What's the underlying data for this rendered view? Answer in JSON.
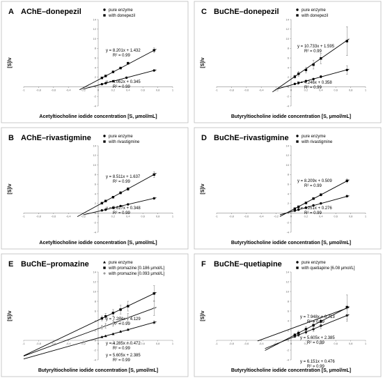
{
  "chart_data": [
    {
      "letter": "A",
      "title": "AChE–donepezil",
      "type": "scatter",
      "xlabel": "Acetyltiocholine iodide concentration [S, μmol/mL]",
      "ylabel": "[S]/v",
      "xlim": [
        -1,
        1
      ],
      "ylim": [
        -4,
        14
      ],
      "xticks": [
        "-1",
        "-0,8",
        "-0,6",
        "-0,4",
        "-0,2",
        "0",
        "0,2",
        "0,4",
        "0,6",
        "0,8",
        "1"
      ],
      "yticks": [
        "-4",
        "-2",
        "0",
        "2",
        "4",
        "6",
        "8",
        "10",
        "12",
        "14"
      ],
      "legend_loc": "top-right",
      "series": [
        {
          "name": "pure enzyme",
          "marker": "circle",
          "slope": 4.062,
          "intercept": 0.345,
          "x": [
            0.05,
            0.1,
            0.2,
            0.38,
            0.75
          ],
          "y": [
            0.55,
            0.75,
            1.16,
            1.89,
            3.4
          ],
          "err": [
            0.08,
            0.08,
            0.1,
            0.1,
            0.15
          ],
          "equation": "y = 4.062x + 0.345",
          "r2": "R² = 0.99",
          "fit_from": -0.2
        },
        {
          "name": "with donepezil",
          "marker": "square",
          "slope": 8.201,
          "intercept": 1.432,
          "x": [
            0.05,
            0.1,
            0.2,
            0.3,
            0.4,
            0.75
          ],
          "y": [
            1.85,
            2.25,
            3.1,
            3.9,
            4.9,
            7.6
          ],
          "err": [
            0.1,
            0.1,
            0.15,
            0.2,
            0.25,
            0.5
          ],
          "equation": "y = 8.201x + 1.432",
          "r2": "R² = 0.99",
          "fit_from": -0.25
        }
      ]
    },
    {
      "letter": "C",
      "title": "BuChE–donepezil",
      "type": "scatter",
      "xlabel": "Butyryltiocholine iodide concentration [S, μmol/mL]",
      "ylabel": "[S]/v",
      "xlim": [
        -1,
        1
      ],
      "ylim": [
        -4,
        14
      ],
      "xticks": [
        "-1",
        "-0,8",
        "-0,6",
        "-0,4",
        "-0,2",
        "0",
        "0,2",
        "0,4",
        "0,6",
        "0,8",
        "1"
      ],
      "yticks": [
        "-4",
        "-2",
        "0",
        "2",
        "4",
        "6",
        "8",
        "10",
        "12",
        "14"
      ],
      "legend_loc": "top-right",
      "series": [
        {
          "name": "pure enzyme",
          "marker": "circle",
          "slope": 4.246,
          "intercept": 0.358,
          "x": [
            0.05,
            0.1,
            0.2,
            0.3,
            0.4,
            0.75
          ],
          "y": [
            0.6,
            0.8,
            1.2,
            1.6,
            2.1,
            3.5
          ],
          "err": [
            0.1,
            0.1,
            0.15,
            0.2,
            0.25,
            0.9
          ],
          "equation": "y = 4.246x + 0.358",
          "r2": "R² = 0.99",
          "fit_from": -0.2
        },
        {
          "name": "with donepezil",
          "marker": "square",
          "slope": 10.733,
          "intercept": 1.595,
          "x": [
            0.05,
            0.1,
            0.2,
            0.3,
            0.4,
            0.75
          ],
          "y": [
            2.1,
            2.7,
            3.5,
            4.6,
            5.9,
            9.5
          ],
          "err": [
            0.3,
            0.5,
            0.6,
            0.9,
            1.1,
            3.0
          ],
          "equation": "y = 10.733x + 1.595",
          "r2": "R² = 0.99",
          "fit_from": -0.25
        }
      ]
    },
    {
      "letter": "B",
      "title": "AChE–rivastigmine",
      "type": "scatter",
      "xlabel": "Acetyltiocholine iodide concentration [S, μmol/mL]",
      "ylabel": "[S]/v",
      "xlim": [
        -1,
        1
      ],
      "ylim": [
        -4,
        14
      ],
      "xticks": [
        "-1",
        "-0,8",
        "-0,6",
        "-0,4",
        "-0,2",
        "0",
        "0,2",
        "0,4",
        "0,6",
        "0,8",
        "1"
      ],
      "yticks": [
        "-4",
        "-2",
        "0",
        "2",
        "4",
        "6",
        "8",
        "10",
        "12",
        "14"
      ],
      "legend_loc": "top-right",
      "series": [
        {
          "name": "pure enzyme",
          "marker": "circle",
          "slope": 3.617,
          "intercept": 0.348,
          "x": [
            0.05,
            0.1,
            0.2,
            0.3,
            0.4,
            0.75
          ],
          "y": [
            0.55,
            0.7,
            1.1,
            1.45,
            1.8,
            3.05
          ],
          "err": [
            0.08,
            0.08,
            0.1,
            0.1,
            0.1,
            0.2
          ],
          "equation": "y = 3.617x + 0.348",
          "r2": "R² = 0.99",
          "fit_from": -0.2
        },
        {
          "name": "with rivastigmine",
          "marker": "square",
          "slope": 8.511,
          "intercept": 1.637,
          "x": [
            0.05,
            0.1,
            0.2,
            0.3,
            0.4,
            0.75
          ],
          "y": [
            2.05,
            2.5,
            3.3,
            4.2,
            5.0,
            8.0
          ],
          "err": [
            0.1,
            0.15,
            0.2,
            0.25,
            0.3,
            0.6
          ],
          "equation": "y = 8.511x + 1.637",
          "r2": "R² = 0.99",
          "fit_from": -0.28
        }
      ]
    },
    {
      "letter": "D",
      "title": "BuChE–rivastigmine",
      "type": "scatter",
      "xlabel": "Butyryltiocholine iodide concentration [S, μmol/mL]",
      "ylabel": "[S]/v",
      "xlim": [
        -1,
        1
      ],
      "ylim": [
        -4,
        14
      ],
      "xticks": [
        "-1",
        "-0,8",
        "-0,6",
        "-0,4",
        "-0,2",
        "0",
        "0,2",
        "0,4",
        "0,6",
        "0,8",
        "1"
      ],
      "yticks": [
        "-4",
        "-2",
        "0",
        "2",
        "4",
        "6",
        "8",
        "10",
        "12",
        "14"
      ],
      "legend_loc": "top-right",
      "series": [
        {
          "name": "pure enzyme",
          "marker": "circle",
          "slope": 4.251,
          "intercept": 0.276,
          "x": [
            0.05,
            0.1,
            0.2,
            0.3,
            0.4,
            0.75
          ],
          "y": [
            0.5,
            0.7,
            1.1,
            1.6,
            2.0,
            3.5
          ],
          "err": [
            0.08,
            0.08,
            0.1,
            0.1,
            0.15,
            0.2
          ],
          "equation": "y = 4.251x + 0.276",
          "r2": "R² = 0.99",
          "fit_from": -0.15
        },
        {
          "name": "with rivastigmine",
          "marker": "square",
          "slope": 8.209,
          "intercept": 0.509,
          "x": [
            0.05,
            0.1,
            0.2,
            0.3,
            0.4,
            0.75
          ],
          "y": [
            0.9,
            1.3,
            2.1,
            3.0,
            3.8,
            6.7
          ],
          "err": [
            0.1,
            0.1,
            0.15,
            0.2,
            0.25,
            0.4
          ],
          "equation": "y = 8.209x + 0.509",
          "r2": "R² = 0.99",
          "fit_from": -0.15
        }
      ]
    },
    {
      "letter": "E",
      "title": "BuChE–promazine",
      "type": "scatter",
      "xlabel": "Butyryltiocholine iodide concentration [S, μmol/mL]",
      "ylabel": "[S]/v",
      "xlim": [
        -1,
        1
      ],
      "ylim": [
        -4,
        14
      ],
      "xticks": [
        "-1",
        "-0,8",
        "-0,6",
        "-0,4",
        "-0,2",
        "0",
        "0,2",
        "0,4",
        "0,6",
        "0,8",
        "1"
      ],
      "yticks": [
        "-4",
        "-2",
        "0",
        "2",
        "4",
        "6",
        "8",
        "10",
        "12",
        "14"
      ],
      "legend_loc": "top-right",
      "series": [
        {
          "name": "pure enzyme",
          "marker": "triangle",
          "slope": 4.285,
          "intercept": 0.472,
          "x": [
            0.05,
            0.1,
            0.2,
            0.3,
            0.4,
            0.75
          ],
          "y": [
            0.7,
            0.9,
            1.3,
            1.8,
            2.2,
            3.7
          ],
          "err": [
            0.1,
            0.1,
            0.15,
            0.2,
            0.2,
            0.3
          ],
          "equation": "y = 4.285x + 0.472",
          "r2": "R² = 0.99",
          "fit_from": -1.0
        },
        {
          "name": "with promazine [0.186 μmol/L]",
          "marker": "square",
          "slope": 7.284,
          "intercept": 4.129,
          "x": [
            0.05,
            0.1,
            0.2,
            0.3,
            0.4,
            0.75
          ],
          "y": [
            4.5,
            4.9,
            5.6,
            6.3,
            7.0,
            9.6
          ],
          "err": [
            0.5,
            0.6,
            0.7,
            0.9,
            1.0,
            1.6
          ],
          "equation": "y = 7.284x + 4.129",
          "r2": "R² = 0.99",
          "fit_from": -1.0
        },
        {
          "name": "with promazine [0.093 μmol/L]",
          "marker": "diamond",
          "slope": 5.605,
          "intercept": 2.385,
          "x": [
            0.05,
            0.1,
            0.2,
            0.3,
            0.4,
            0.75
          ],
          "y": [
            2.7,
            3.0,
            3.5,
            4.1,
            4.6,
            6.6
          ],
          "err": [
            0.4,
            0.5,
            0.6,
            0.7,
            0.9,
            1.5
          ],
          "equation": "y = 5.605x + 2.385",
          "r2": "R² = 0.99",
          "fit_from": -1.0,
          "color": "#9a9a9a"
        }
      ]
    },
    {
      "letter": "F",
      "title": "BuChE–quetiapine",
      "type": "scatter",
      "xlabel": "Butyryltiocholine iodide concentration [S, μmol/mL]",
      "ylabel": "[S]/v",
      "xlim": [
        -1,
        1
      ],
      "ylim": [
        -4,
        14
      ],
      "xticks": [
        "-1",
        "-0,8",
        "-0,6",
        "-0,4",
        "-0,2",
        "0",
        "0,2",
        "0,4",
        "0,6",
        "0,8",
        "1"
      ],
      "yticks": [
        "-4",
        "-2",
        "0",
        "2",
        "4",
        "6",
        "8",
        "10",
        "12",
        "14"
      ],
      "legend_loc": "top-right",
      "series": [
        {
          "name": "pure enzyme",
          "marker": "circle",
          "slope": 6.151,
          "intercept": 0.476,
          "x": [
            0.05,
            0.1,
            0.2,
            0.3,
            0.4,
            0.75
          ],
          "y": [
            0.8,
            1.1,
            1.7,
            2.3,
            3.0,
            5.1
          ],
          "err": [
            0.2,
            0.3,
            0.4,
            0.5,
            0.6,
            1.2
          ],
          "equation": "y = 6.151x + 0.476",
          "r2": "R² = 0.99",
          "fit_from": -0.35
        },
        {
          "name": "with quetiapine [6.08 μmol/L]",
          "marker": "square",
          "slope": 7.948,
          "intercept": 0.713,
          "x": [
            0.05,
            0.1,
            0.2,
            0.3,
            0.4,
            0.75
          ],
          "y": [
            1.1,
            1.5,
            2.3,
            3.1,
            3.9,
            6.8
          ],
          "err": [
            0.3,
            0.4,
            0.5,
            0.7,
            0.9,
            2.5
          ],
          "equation": "y = 7.948x + 0.713",
          "r2": "R² = 0.99",
          "fit_from": -0.35
        },
        {
          "name": "",
          "marker": "none",
          "slope": 5.605,
          "intercept": 2.385,
          "x": [],
          "y": [],
          "err": [],
          "equation": "y = 5.605x + 2.385",
          "r2": "R² = 0.99",
          "fit_from": -0.45,
          "color": "#777777"
        }
      ]
    }
  ]
}
